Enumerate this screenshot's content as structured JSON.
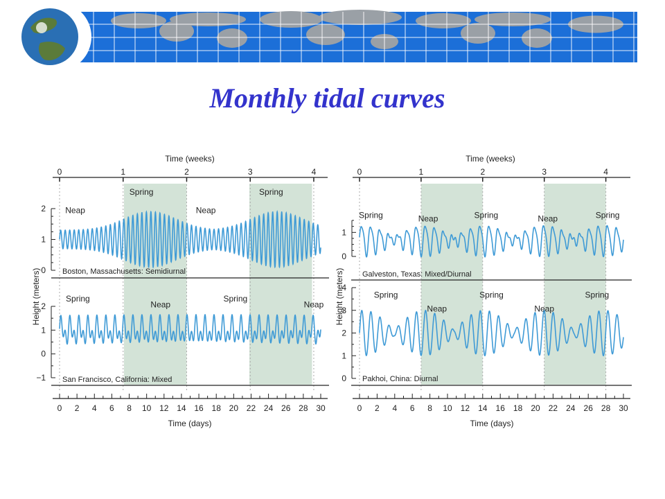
{
  "slide": {
    "title": "Monthly tidal curves"
  },
  "banner": {
    "colors": {
      "band": "#1c6fd8",
      "grid": "#ffffff",
      "land": "#9aa0a6",
      "globe_ocean": "#2a6fb4",
      "globe_land": "#5b7b3a"
    },
    "icon": "globe-icon"
  },
  "colors": {
    "curve": "#3e9ad6",
    "spring_band": "#d3e3d7",
    "axis": "#222222"
  },
  "figures": {
    "left": {
      "top_axis_label": "Time (weeks)",
      "bottom_axis_label": "Time (days)",
      "y_axis_label": "Height (meters)",
      "week_ticks": [
        "0",
        "1",
        "2",
        "3",
        "4"
      ],
      "day_ticks": [
        "0",
        "2",
        "4",
        "6",
        "8",
        "10",
        "12",
        "14",
        "16",
        "18",
        "20",
        "22",
        "24",
        "26",
        "28",
        "30"
      ]
    },
    "right": {
      "top_axis_label": "Time (weeks)",
      "bottom_axis_label": "Time (days)",
      "y_axis_label": "Height (meters)",
      "week_ticks": [
        "0",
        "1",
        "2",
        "3",
        "4"
      ],
      "day_ticks": [
        "0",
        "2",
        "4",
        "6",
        "8",
        "10",
        "12",
        "14",
        "16",
        "18",
        "20",
        "22",
        "24",
        "26",
        "28",
        "30"
      ]
    }
  },
  "chart_data": [
    {
      "type": "line",
      "title": "Boston, Massachusetts: Semidiurnal",
      "xlabel": "Time (days)",
      "ylabel": "Height (meters)",
      "xlim": [
        0,
        30
      ],
      "ylim": [
        0,
        2
      ],
      "y_ticks": [
        "0",
        "1",
        "2"
      ],
      "spring_periods_days": [
        [
          7.4,
          14.6
        ],
        [
          21.8,
          29
        ]
      ],
      "annotations": [
        {
          "text": "Neap",
          "day": 1.8,
          "y": 1.85
        },
        {
          "text": "Spring",
          "day": 9.4,
          "y": 2.45
        },
        {
          "text": "Neap",
          "day": 16.8,
          "y": 1.85
        },
        {
          "text": "Spring",
          "day": 24.3,
          "y": 2.45
        }
      ],
      "tide_model": {
        "kind": "semidiurnal",
        "mean": 1.0,
        "neap_amplitude": 0.3,
        "spring_amplitude": 0.9,
        "cycles_per_day": 1.93,
        "spring_peak_days": [
          10.4,
          25.0
        ]
      }
    },
    {
      "type": "line",
      "title": "San Francisco, California: Mixed",
      "xlabel": "Time (days)",
      "ylabel": "Height (meters)",
      "xlim": [
        0,
        30
      ],
      "ylim": [
        -1,
        2
      ],
      "y_ticks": [
        "−1",
        "0",
        "1",
        "2"
      ],
      "spring_periods_days": [
        [
          7.4,
          14.6
        ],
        [
          21.8,
          29
        ]
      ],
      "annotations": [
        {
          "text": "Spring",
          "day": 2.1,
          "y": 2.2
        },
        {
          "text": "Neap",
          "day": 11.6,
          "y": 1.95
        },
        {
          "text": "Spring",
          "day": 20.2,
          "y": 2.2
        },
        {
          "text": "Neap",
          "day": 29.2,
          "y": 1.95
        }
      ],
      "tide_model": {
        "kind": "mixed",
        "mean": 0.95,
        "diurnal_amplitude": 0.35,
        "semidiurnal_amplitude": 0.35
      }
    },
    {
      "type": "line",
      "title": "Galveston, Texas: Mixed/Diurnal",
      "xlabel": "Time (days)",
      "ylabel": "Height (meters)",
      "xlim": [
        0,
        30
      ],
      "ylim": [
        0,
        1.5
      ],
      "y_ticks": [
        "0",
        "1"
      ],
      "spring_periods_days": [
        [
          7,
          14
        ],
        [
          21,
          28
        ]
      ],
      "annotations": [
        {
          "text": "Spring",
          "day": 1.3,
          "y": 1.6
        },
        {
          "text": "Neap",
          "day": 7.8,
          "y": 1.45
        },
        {
          "text": "Spring",
          "day": 14.4,
          "y": 1.6
        },
        {
          "text": "Neap",
          "day": 21.4,
          "y": 1.45
        },
        {
          "text": "Spring",
          "day": 28.2,
          "y": 1.6
        }
      ],
      "tide_model": {
        "kind": "mixed-diurnal",
        "mean": 0.7,
        "diurnal_amplitude": 0.6,
        "semidiurnal_amplitude": 0.12
      }
    },
    {
      "type": "line",
      "title": "Pakhoi, China: Diurnal",
      "xlabel": "Time (days)",
      "ylabel": "Height (meters)",
      "xlim": [
        0,
        30
      ],
      "ylim": [
        0,
        4
      ],
      "y_ticks": [
        "0",
        "1",
        "2",
        "3",
        "4"
      ],
      "spring_periods_days": [
        [
          7,
          14
        ],
        [
          21,
          28
        ]
      ],
      "annotations": [
        {
          "text": "Spring",
          "day": 3.0,
          "y": 3.55
        },
        {
          "text": "Neap",
          "day": 8.8,
          "y": 2.95
        },
        {
          "text": "Spring",
          "day": 15.0,
          "y": 3.55
        },
        {
          "text": "Neap",
          "day": 21.0,
          "y": 2.95
        },
        {
          "text": "Spring",
          "day": 27.0,
          "y": 3.55
        }
      ],
      "tide_model": {
        "kind": "diurnal",
        "mean": 2.0,
        "neap_amplitude": 0.12,
        "spring_amplitude": 1.0,
        "cycles_per_day": 0.965
      }
    }
  ]
}
